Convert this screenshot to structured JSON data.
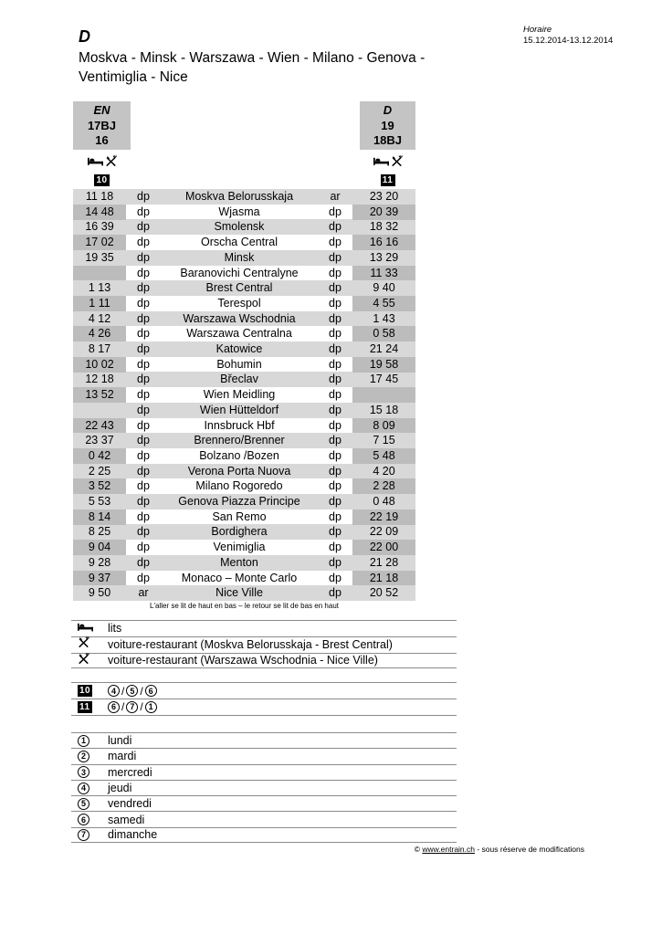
{
  "header": {
    "category": "D",
    "route_title": "Moskva - Minsk - Warszawa - Wien - Milano - Genova - Ventimiglia - Nice",
    "doc_type": "Horaire",
    "validity": "15.12.2014-13.12.2014"
  },
  "trains": {
    "outbound": {
      "type": "EN",
      "number1": "17BJ",
      "number2": "16",
      "icons": [
        "bed-icon",
        "restaurant-icon"
      ],
      "note_ref": "10"
    },
    "return": {
      "type": "D",
      "number1": "19",
      "number2": "18BJ",
      "icons": [
        "bed-icon",
        "restaurant-icon"
      ],
      "note_ref": "11"
    }
  },
  "timetable": {
    "rows": [
      {
        "dep": "11 18",
        "dep_mode": "dp",
        "station": "Moskva Belorusskaja",
        "ret_mode": "ar",
        "ret": "23 20"
      },
      {
        "dep": "14 48",
        "dep_mode": "dp",
        "station": "Wjasma",
        "ret_mode": "dp",
        "ret": "20 39"
      },
      {
        "dep": "16 39",
        "dep_mode": "dp",
        "station": "Smolensk",
        "ret_mode": "dp",
        "ret": "18 32"
      },
      {
        "dep": "17 02",
        "dep_mode": "dp",
        "station": "Orscha Central",
        "ret_mode": "dp",
        "ret": "16 16"
      },
      {
        "dep": "19 35",
        "dep_mode": "dp",
        "station": "Minsk",
        "ret_mode": "dp",
        "ret": "13 29"
      },
      {
        "dep": "",
        "dep_mode": "dp",
        "station": "Baranovichi Centralyne",
        "ret_mode": "dp",
        "ret": "11 33"
      },
      {
        "dep": "1 13",
        "dep_mode": "dp",
        "station": "Brest Central",
        "ret_mode": "dp",
        "ret": "9 40"
      },
      {
        "dep": "1 11",
        "dep_mode": "dp",
        "station": "Terespol",
        "ret_mode": "dp",
        "ret": "4 55"
      },
      {
        "dep": "4 12",
        "dep_mode": "dp",
        "station": "Warszawa Wschodnia",
        "ret_mode": "dp",
        "ret": "1 43"
      },
      {
        "dep": "4 26",
        "dep_mode": "dp",
        "station": "Warszawa Centralna",
        "ret_mode": "dp",
        "ret": "0 58"
      },
      {
        "dep": "8 17",
        "dep_mode": "dp",
        "station": "Katowice",
        "ret_mode": "dp",
        "ret": "21 24"
      },
      {
        "dep": "10 02",
        "dep_mode": "dp",
        "station": "Bohumin",
        "ret_mode": "dp",
        "ret": "19 58"
      },
      {
        "dep": "12 18",
        "dep_mode": "dp",
        "station": "Břeclav",
        "ret_mode": "dp",
        "ret": "17 45"
      },
      {
        "dep": "13 52",
        "dep_mode": "dp",
        "station": "Wien Meidling",
        "ret_mode": "dp",
        "ret": ""
      },
      {
        "dep": "",
        "dep_mode": "dp",
        "station": "Wien Hütteldorf",
        "ret_mode": "dp",
        "ret": "15 18"
      },
      {
        "dep": "22 43",
        "dep_mode": "dp",
        "station": "Innsbruck Hbf",
        "ret_mode": "dp",
        "ret": "8 09"
      },
      {
        "dep": "23 37",
        "dep_mode": "dp",
        "station": "Brennero/Brenner",
        "ret_mode": "dp",
        "ret": "7 15"
      },
      {
        "dep": "0 42",
        "dep_mode": "dp",
        "station": "Bolzano /Bozen",
        "ret_mode": "dp",
        "ret": "5 48"
      },
      {
        "dep": "2 25",
        "dep_mode": "dp",
        "station": "Verona Porta Nuova",
        "ret_mode": "dp",
        "ret": "4 20"
      },
      {
        "dep": "3 52",
        "dep_mode": "dp",
        "station": "Milano Rogoredo",
        "ret_mode": "dp",
        "ret": "2 28"
      },
      {
        "dep": "5 53",
        "dep_mode": "dp",
        "station": "Genova Piazza Principe",
        "ret_mode": "dp",
        "ret": "0 48"
      },
      {
        "dep": "8 14",
        "dep_mode": "dp",
        "station": "San Remo",
        "ret_mode": "dp",
        "ret": "22 19"
      },
      {
        "dep": "8 25",
        "dep_mode": "dp",
        "station": "Bordighera",
        "ret_mode": "dp",
        "ret": "22 09"
      },
      {
        "dep": "9 04",
        "dep_mode": "dp",
        "station": "Venimiglia",
        "ret_mode": "dp",
        "ret": "22 00"
      },
      {
        "dep": "9 28",
        "dep_mode": "dp",
        "station": "Menton",
        "ret_mode": "dp",
        "ret": "21 28"
      },
      {
        "dep": "9 37",
        "dep_mode": "dp",
        "station": "Monaco – Monte Carlo",
        "ret_mode": "dp",
        "ret": "21 18"
      },
      {
        "dep": "9 50",
        "dep_mode": "ar",
        "station": "Nice Ville",
        "ret_mode": "dp",
        "ret": "20 52"
      }
    ],
    "note": "L'aller se lit de haut en bas – le retour se lit de bas en haut"
  },
  "legend_amenities": [
    {
      "icon": "bed-icon",
      "label": "lits"
    },
    {
      "icon": "restaurant-icon",
      "label": "voiture-restaurant (Moskva Belorusskaja - Brest Central)"
    },
    {
      "icon": "restaurant-icon",
      "label": "voiture-restaurant (Warszawa Wschodnia - Nice Ville)"
    }
  ],
  "legend_dayrefs": [
    {
      "ref": "10",
      "days": [
        "4",
        "5",
        "6"
      ]
    },
    {
      "ref": "11",
      "days": [
        "6",
        "7",
        "1"
      ]
    }
  ],
  "weekdays": [
    {
      "num": "1",
      "label": "lundi"
    },
    {
      "num": "2",
      "label": "mardi"
    },
    {
      "num": "3",
      "label": "mercredi"
    },
    {
      "num": "4",
      "label": "jeudi"
    },
    {
      "num": "5",
      "label": "vendredi"
    },
    {
      "num": "6",
      "label": "samedi"
    },
    {
      "num": "7",
      "label": "dimanche"
    }
  ],
  "footer": {
    "copyright_symbol": "©",
    "link_text": "www.entrain.ch",
    "suffix": " - sous réserve de modifications"
  },
  "colors": {
    "row_light": "#d8d8d8",
    "time_cell_dark": "#bcbcbc",
    "header_box": "#c4c4c4",
    "rule_gray": "#8a8a8a"
  }
}
